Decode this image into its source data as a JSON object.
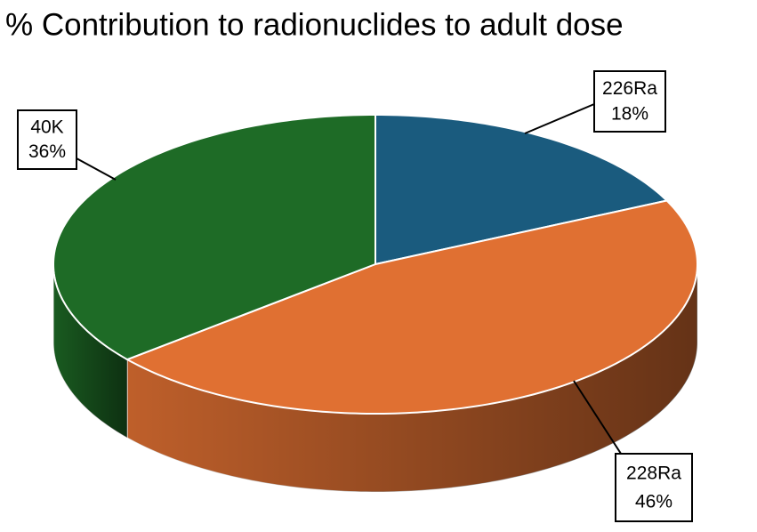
{
  "chart_data": {
    "type": "pie",
    "title": "% Contribution to radionuclides to adult dose",
    "categories": [
      "226Ra",
      "228Ra",
      "40K"
    ],
    "values": [
      18,
      46,
      36
    ],
    "value_labels": [
      "18%",
      "46%",
      "36%"
    ],
    "colors": [
      "#1a5b7e",
      "#e07032",
      "#1e6b26"
    ]
  }
}
